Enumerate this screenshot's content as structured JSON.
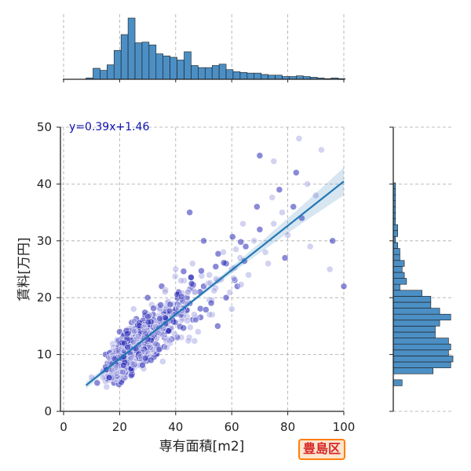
{
  "chart_data": {
    "type": "scatter",
    "xlabel": "専有面積[m2]",
    "ylabel": "賃料[万円]",
    "xlim": [
      0,
      100
    ],
    "ylim": [
      0,
      50
    ],
    "x_ticks": [
      0,
      20,
      40,
      60,
      80,
      100
    ],
    "y_ticks": [
      0,
      10,
      20,
      30,
      40,
      50
    ],
    "grid": true,
    "regression": {
      "equation": "y=0.39x+1.46",
      "slope": 0.39,
      "intercept": 1.46,
      "x_range": [
        8,
        100
      ]
    },
    "scatter_sample": [
      {
        "x": 10,
        "y": 6
      },
      {
        "x": 12,
        "y": 5
      },
      {
        "x": 14,
        "y": 7
      },
      {
        "x": 16,
        "y": 8
      },
      {
        "x": 18,
        "y": 9
      },
      {
        "x": 20,
        "y": 8
      },
      {
        "x": 22,
        "y": 11
      },
      {
        "x": 24,
        "y": 12
      },
      {
        "x": 25,
        "y": 10
      },
      {
        "x": 27,
        "y": 13
      },
      {
        "x": 28,
        "y": 11
      },
      {
        "x": 30,
        "y": 14
      },
      {
        "x": 31,
        "y": 12
      },
      {
        "x": 33,
        "y": 15
      },
      {
        "x": 35,
        "y": 16
      },
      {
        "x": 36,
        "y": 13
      },
      {
        "x": 38,
        "y": 17
      },
      {
        "x": 40,
        "y": 18
      },
      {
        "x": 42,
        "y": 16
      },
      {
        "x": 44,
        "y": 20
      },
      {
        "x": 45,
        "y": 19
      },
      {
        "x": 47,
        "y": 21
      },
      {
        "x": 50,
        "y": 22
      },
      {
        "x": 52,
        "y": 24
      },
      {
        "x": 55,
        "y": 23
      },
      {
        "x": 58,
        "y": 26
      },
      {
        "x": 60,
        "y": 25
      },
      {
        "x": 63,
        "y": 27
      },
      {
        "x": 65,
        "y": 29
      },
      {
        "x": 68,
        "y": 30
      },
      {
        "x": 70,
        "y": 32
      },
      {
        "x": 72,
        "y": 28
      },
      {
        "x": 75,
        "y": 33
      },
      {
        "x": 78,
        "y": 35
      },
      {
        "x": 80,
        "y": 31
      },
      {
        "x": 82,
        "y": 36
      },
      {
        "x": 85,
        "y": 34
      },
      {
        "x": 87,
        "y": 40
      },
      {
        "x": 90,
        "y": 38
      },
      {
        "x": 92,
        "y": 46
      },
      {
        "x": 84,
        "y": 48
      },
      {
        "x": 70,
        "y": 45
      },
      {
        "x": 75,
        "y": 44
      },
      {
        "x": 95,
        "y": 25
      },
      {
        "x": 100,
        "y": 22
      },
      {
        "x": 60,
        "y": 18
      },
      {
        "x": 55,
        "y": 15
      },
      {
        "x": 50,
        "y": 30
      },
      {
        "x": 45,
        "y": 35
      },
      {
        "x": 40,
        "y": 25
      },
      {
        "x": 35,
        "y": 22
      },
      {
        "x": 30,
        "y": 20
      },
      {
        "x": 25,
        "y": 18
      },
      {
        "x": 20,
        "y": 14
      },
      {
        "x": 15,
        "y": 10
      },
      {
        "x": 18,
        "y": 5
      },
      {
        "x": 22,
        "y": 6
      },
      {
        "x": 28,
        "y": 9
      },
      {
        "x": 33,
        "y": 10
      },
      {
        "x": 38,
        "y": 12
      },
      {
        "x": 42,
        "y": 13
      },
      {
        "x": 48,
        "y": 14
      },
      {
        "x": 53,
        "y": 17
      },
      {
        "x": 58,
        "y": 20
      },
      {
        "x": 62,
        "y": 22
      },
      {
        "x": 66,
        "y": 24
      },
      {
        "x": 73,
        "y": 26
      },
      {
        "x": 79,
        "y": 27
      },
      {
        "x": 88,
        "y": 29
      },
      {
        "x": 96,
        "y": 30
      },
      {
        "x": 26,
        "y": 15
      },
      {
        "x": 32,
        "y": 17
      },
      {
        "x": 37,
        "y": 19
      },
      {
        "x": 43,
        "y": 23
      },
      {
        "x": 46,
        "y": 26
      },
      {
        "x": 57,
        "y": 28
      },
      {
        "x": 64,
        "y": 33
      },
      {
        "x": 69,
        "y": 36
      },
      {
        "x": 77,
        "y": 39
      },
      {
        "x": 83,
        "y": 42
      }
    ],
    "top_histogram": {
      "axis": "x",
      "bin_start": 8,
      "bin_width": 2.5,
      "heights": [
        2,
        16,
        13,
        21,
        42,
        65,
        89,
        53,
        54,
        50,
        37,
        34,
        32,
        28,
        40,
        20,
        17,
        17,
        20,
        22,
        14,
        11,
        10,
        9,
        9,
        7,
        6,
        6,
        4,
        4,
        5,
        4,
        3,
        2,
        1,
        2,
        1
      ]
    },
    "right_histogram": {
      "axis": "y",
      "bin_start": 4.5,
      "bin_width": 1.05,
      "widths": [
        4,
        0,
        18,
        26,
        27,
        25,
        26,
        25,
        19,
        19,
        21,
        26,
        21,
        17,
        17,
        13,
        3,
        6,
        5,
        4,
        5,
        3,
        3,
        2,
        1,
        2,
        2,
        1,
        1,
        1,
        1,
        1,
        1,
        1,
        0,
        0,
        0,
        0,
        0,
        0,
        0,
        0,
        0,
        0,
        0
      ]
    }
  },
  "badge": {
    "label": "豊島区"
  }
}
